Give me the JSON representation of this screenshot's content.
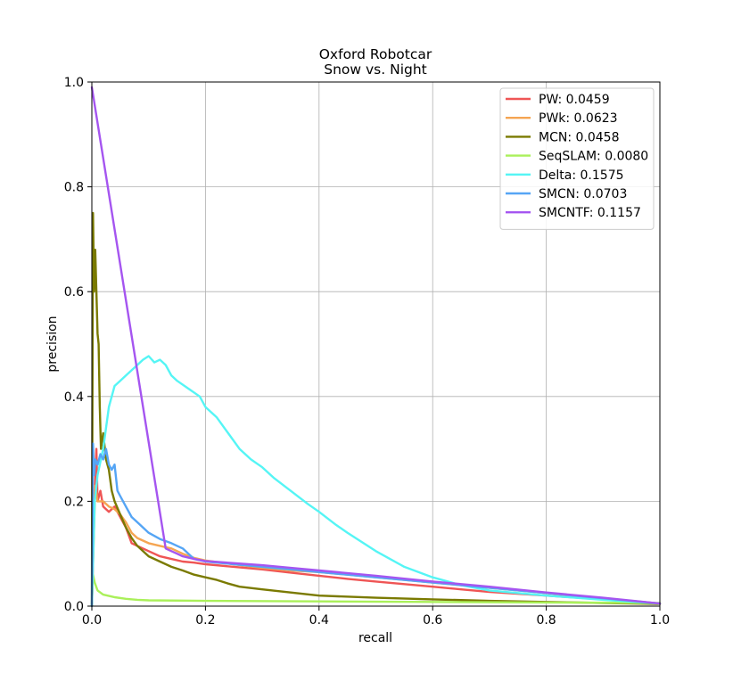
{
  "chart_data": {
    "type": "line",
    "title": "Oxford Robotcar",
    "subtitle": "Snow vs. Night",
    "xlabel": "recall",
    "ylabel": "precision",
    "xlim": [
      0,
      1
    ],
    "ylim": [
      0,
      1
    ],
    "grid": true,
    "legend_position": "top-right",
    "x_ticks": [
      "0.0",
      "0.2",
      "0.4",
      "0.6",
      "0.8",
      "1.0"
    ],
    "y_ticks": [
      "0.0",
      "0.2",
      "0.4",
      "0.6",
      "0.8",
      "1.0"
    ],
    "series": [
      {
        "name": "PW",
        "label": "PW: 0.0459",
        "color": "#ef5555",
        "points": [
          [
            0.0,
            0.0
          ],
          [
            0.005,
            0.22
          ],
          [
            0.008,
            0.3
          ],
          [
            0.01,
            0.2
          ],
          [
            0.015,
            0.22
          ],
          [
            0.02,
            0.19
          ],
          [
            0.03,
            0.18
          ],
          [
            0.04,
            0.19
          ],
          [
            0.05,
            0.17
          ],
          [
            0.06,
            0.15
          ],
          [
            0.07,
            0.12
          ],
          [
            0.08,
            0.115
          ],
          [
            0.1,
            0.105
          ],
          [
            0.12,
            0.095
          ],
          [
            0.14,
            0.09
          ],
          [
            0.16,
            0.085
          ],
          [
            0.18,
            0.083
          ],
          [
            0.2,
            0.08
          ],
          [
            0.25,
            0.075
          ],
          [
            0.3,
            0.07
          ],
          [
            0.35,
            0.064
          ],
          [
            0.4,
            0.058
          ],
          [
            0.45,
            0.052
          ],
          [
            0.5,
            0.047
          ],
          [
            0.55,
            0.042
          ],
          [
            0.6,
            0.037
          ],
          [
            0.65,
            0.032
          ],
          [
            0.7,
            0.027
          ],
          [
            0.8,
            0.02
          ],
          [
            0.9,
            0.013
          ],
          [
            1.0,
            0.005
          ]
        ]
      },
      {
        "name": "PWk",
        "label": "PWk: 0.0623",
        "color": "#f5a552",
        "points": [
          [
            0.0,
            0.0
          ],
          [
            0.006,
            0.23
          ],
          [
            0.01,
            0.2
          ],
          [
            0.02,
            0.2
          ],
          [
            0.03,
            0.19
          ],
          [
            0.04,
            0.185
          ],
          [
            0.05,
            0.175
          ],
          [
            0.06,
            0.16
          ],
          [
            0.07,
            0.14
          ],
          [
            0.08,
            0.13
          ],
          [
            0.1,
            0.12
          ],
          [
            0.12,
            0.115
          ],
          [
            0.14,
            0.11
          ],
          [
            0.16,
            0.1
          ],
          [
            0.18,
            0.092
          ],
          [
            0.2,
            0.087
          ],
          [
            0.25,
            0.08
          ],
          [
            0.3,
            0.073
          ],
          [
            0.35,
            0.068
          ],
          [
            0.4,
            0.065
          ],
          [
            0.45,
            0.06
          ],
          [
            0.5,
            0.055
          ],
          [
            0.55,
            0.05
          ],
          [
            0.6,
            0.045
          ],
          [
            0.65,
            0.04
          ],
          [
            0.7,
            0.035
          ],
          [
            0.8,
            0.025
          ],
          [
            0.9,
            0.015
          ],
          [
            1.0,
            0.005
          ]
        ]
      },
      {
        "name": "MCN",
        "label": "MCN: 0.0458",
        "color": "#7a7a00",
        "points": [
          [
            0.0,
            0.0
          ],
          [
            0.002,
            0.75
          ],
          [
            0.004,
            0.6
          ],
          [
            0.006,
            0.68
          ],
          [
            0.008,
            0.6
          ],
          [
            0.01,
            0.52
          ],
          [
            0.012,
            0.5
          ],
          [
            0.014,
            0.38
          ],
          [
            0.016,
            0.3
          ],
          [
            0.02,
            0.33
          ],
          [
            0.025,
            0.28
          ],
          [
            0.03,
            0.26
          ],
          [
            0.035,
            0.22
          ],
          [
            0.04,
            0.2
          ],
          [
            0.05,
            0.175
          ],
          [
            0.06,
            0.15
          ],
          [
            0.07,
            0.13
          ],
          [
            0.08,
            0.115
          ],
          [
            0.1,
            0.095
          ],
          [
            0.12,
            0.085
          ],
          [
            0.14,
            0.075
          ],
          [
            0.16,
            0.068
          ],
          [
            0.18,
            0.06
          ],
          [
            0.2,
            0.055
          ],
          [
            0.22,
            0.05
          ],
          [
            0.24,
            0.043
          ],
          [
            0.26,
            0.037
          ],
          [
            0.3,
            0.032
          ],
          [
            0.35,
            0.026
          ],
          [
            0.4,
            0.02
          ],
          [
            0.5,
            0.016
          ],
          [
            0.6,
            0.013
          ],
          [
            0.7,
            0.01
          ],
          [
            0.8,
            0.008
          ],
          [
            0.9,
            0.006
          ],
          [
            1.0,
            0.004
          ]
        ]
      },
      {
        "name": "SeqSLAM",
        "label": "SeqSLAM: 0.0080",
        "color": "#aaf05a",
        "points": [
          [
            0.0,
            0.0
          ],
          [
            0.002,
            0.06
          ],
          [
            0.005,
            0.045
          ],
          [
            0.01,
            0.03
          ],
          [
            0.02,
            0.022
          ],
          [
            0.04,
            0.017
          ],
          [
            0.06,
            0.014
          ],
          [
            0.08,
            0.012
          ],
          [
            0.1,
            0.011
          ],
          [
            0.2,
            0.01
          ],
          [
            0.4,
            0.009
          ],
          [
            0.6,
            0.008
          ],
          [
            0.8,
            0.007
          ],
          [
            1.0,
            0.006
          ]
        ]
      },
      {
        "name": "Delta",
        "label": "Delta: 0.1575",
        "color": "#55f5f5",
        "points": [
          [
            0.0,
            0.0
          ],
          [
            0.005,
            0.2
          ],
          [
            0.01,
            0.25
          ],
          [
            0.02,
            0.3
          ],
          [
            0.03,
            0.38
          ],
          [
            0.04,
            0.42
          ],
          [
            0.05,
            0.43
          ],
          [
            0.06,
            0.44
          ],
          [
            0.07,
            0.45
          ],
          [
            0.08,
            0.46
          ],
          [
            0.09,
            0.47
          ],
          [
            0.1,
            0.477
          ],
          [
            0.11,
            0.465
          ],
          [
            0.12,
            0.47
          ],
          [
            0.13,
            0.46
          ],
          [
            0.14,
            0.44
          ],
          [
            0.15,
            0.43
          ],
          [
            0.17,
            0.415
          ],
          [
            0.19,
            0.4
          ],
          [
            0.2,
            0.38
          ],
          [
            0.22,
            0.36
          ],
          [
            0.24,
            0.33
          ],
          [
            0.26,
            0.3
          ],
          [
            0.28,
            0.28
          ],
          [
            0.3,
            0.265
          ],
          [
            0.32,
            0.245
          ],
          [
            0.35,
            0.22
          ],
          [
            0.38,
            0.195
          ],
          [
            0.4,
            0.18
          ],
          [
            0.43,
            0.155
          ],
          [
            0.45,
            0.14
          ],
          [
            0.5,
            0.105
          ],
          [
            0.55,
            0.075
          ],
          [
            0.6,
            0.055
          ],
          [
            0.65,
            0.04
          ],
          [
            0.7,
            0.03
          ],
          [
            0.8,
            0.02
          ],
          [
            0.9,
            0.012
          ],
          [
            1.0,
            0.005
          ]
        ]
      },
      {
        "name": "SMCN",
        "label": "SMCN: 0.0703",
        "color": "#55a5f5",
        "points": [
          [
            0.0,
            0.0
          ],
          [
            0.002,
            0.31
          ],
          [
            0.004,
            0.25
          ],
          [
            0.006,
            0.28
          ],
          [
            0.01,
            0.27
          ],
          [
            0.015,
            0.29
          ],
          [
            0.02,
            0.28
          ],
          [
            0.025,
            0.3
          ],
          [
            0.03,
            0.27
          ],
          [
            0.035,
            0.26
          ],
          [
            0.04,
            0.27
          ],
          [
            0.045,
            0.22
          ],
          [
            0.05,
            0.21
          ],
          [
            0.06,
            0.19
          ],
          [
            0.07,
            0.17
          ],
          [
            0.08,
            0.16
          ],
          [
            0.09,
            0.15
          ],
          [
            0.1,
            0.14
          ],
          [
            0.12,
            0.128
          ],
          [
            0.14,
            0.12
          ],
          [
            0.15,
            0.115
          ],
          [
            0.16,
            0.11
          ],
          [
            0.17,
            0.1
          ],
          [
            0.18,
            0.09
          ],
          [
            0.2,
            0.085
          ],
          [
            0.25,
            0.08
          ],
          [
            0.3,
            0.075
          ],
          [
            0.4,
            0.065
          ],
          [
            0.5,
            0.055
          ],
          [
            0.6,
            0.045
          ],
          [
            0.7,
            0.035
          ],
          [
            0.8,
            0.025
          ],
          [
            0.9,
            0.015
          ],
          [
            1.0,
            0.005
          ]
        ]
      },
      {
        "name": "SMCNTF",
        "label": "SMCNTF: 0.1157",
        "color": "#a555f0",
        "points": [
          [
            0.0,
            0.99
          ],
          [
            0.13,
            0.11
          ],
          [
            0.14,
            0.105
          ],
          [
            0.15,
            0.1
          ],
          [
            0.16,
            0.095
          ],
          [
            0.18,
            0.09
          ],
          [
            0.2,
            0.086
          ],
          [
            0.3,
            0.078
          ],
          [
            0.4,
            0.068
          ],
          [
            0.5,
            0.058
          ],
          [
            0.6,
            0.047
          ],
          [
            0.7,
            0.037
          ],
          [
            0.8,
            0.026
          ],
          [
            0.9,
            0.016
          ],
          [
            1.0,
            0.005
          ]
        ]
      }
    ]
  }
}
